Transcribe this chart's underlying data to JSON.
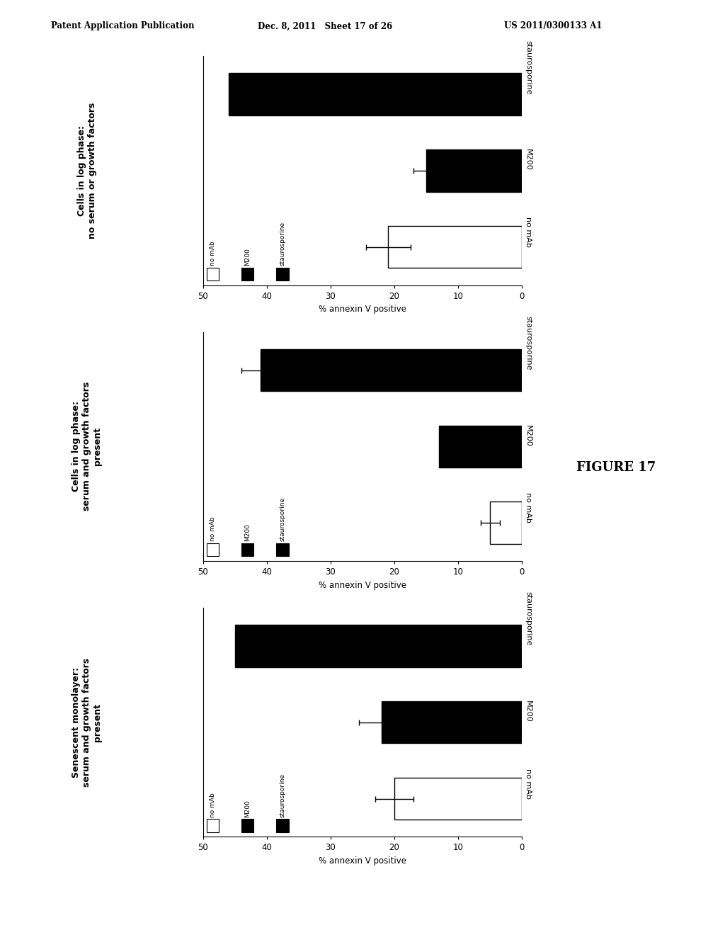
{
  "header_left": "Patent Application Publication",
  "header_mid": "Dec. 8, 2011   Sheet 17 of 26",
  "header_right": "US 2011/0300133 A1",
  "figure_label": "FIGURE 17",
  "panels": [
    {
      "title_line1": "Cells in log phase:",
      "title_line2": "no serum or growth factors",
      "xlabel": "% annexin V positive",
      "xlim_max": 50,
      "xticks": [
        0,
        10,
        20,
        30,
        40,
        50
      ],
      "categories": [
        "no mAb",
        "M200",
        "staurosporine"
      ],
      "values": [
        21,
        15,
        46
      ],
      "errors": [
        3.5,
        2.0,
        0
      ],
      "colors": [
        "white",
        "black",
        "black"
      ]
    },
    {
      "title_line1": "Cells in log phase:",
      "title_line2": "serum and growth factors",
      "title_line3": "present",
      "xlabel": "% annexin V positive",
      "xlim_max": 50,
      "xticks": [
        0,
        10,
        20,
        30,
        40,
        50
      ],
      "categories": [
        "no mAb",
        "M200",
        "staurosporine"
      ],
      "values": [
        5,
        13,
        41
      ],
      "errors": [
        1.5,
        0,
        3.0
      ],
      "colors": [
        "white",
        "black",
        "black"
      ]
    },
    {
      "title_line1": "Senescent monolayer:",
      "title_line2": "serum and growth factors",
      "title_line3": "present",
      "xlabel": "% annexin V positive",
      "xlim_max": 50,
      "xticks": [
        0,
        10,
        20,
        30,
        40,
        50
      ],
      "categories": [
        "no mAb",
        "M200",
        "staurosporine"
      ],
      "values": [
        20,
        22,
        45
      ],
      "errors": [
        3.0,
        3.5,
        0
      ],
      "colors": [
        "white",
        "black",
        "black"
      ]
    }
  ],
  "legend_labels": [
    "no mAb",
    "M200",
    "staurosporine"
  ],
  "legend_colors": [
    "white",
    "black",
    "black"
  ]
}
